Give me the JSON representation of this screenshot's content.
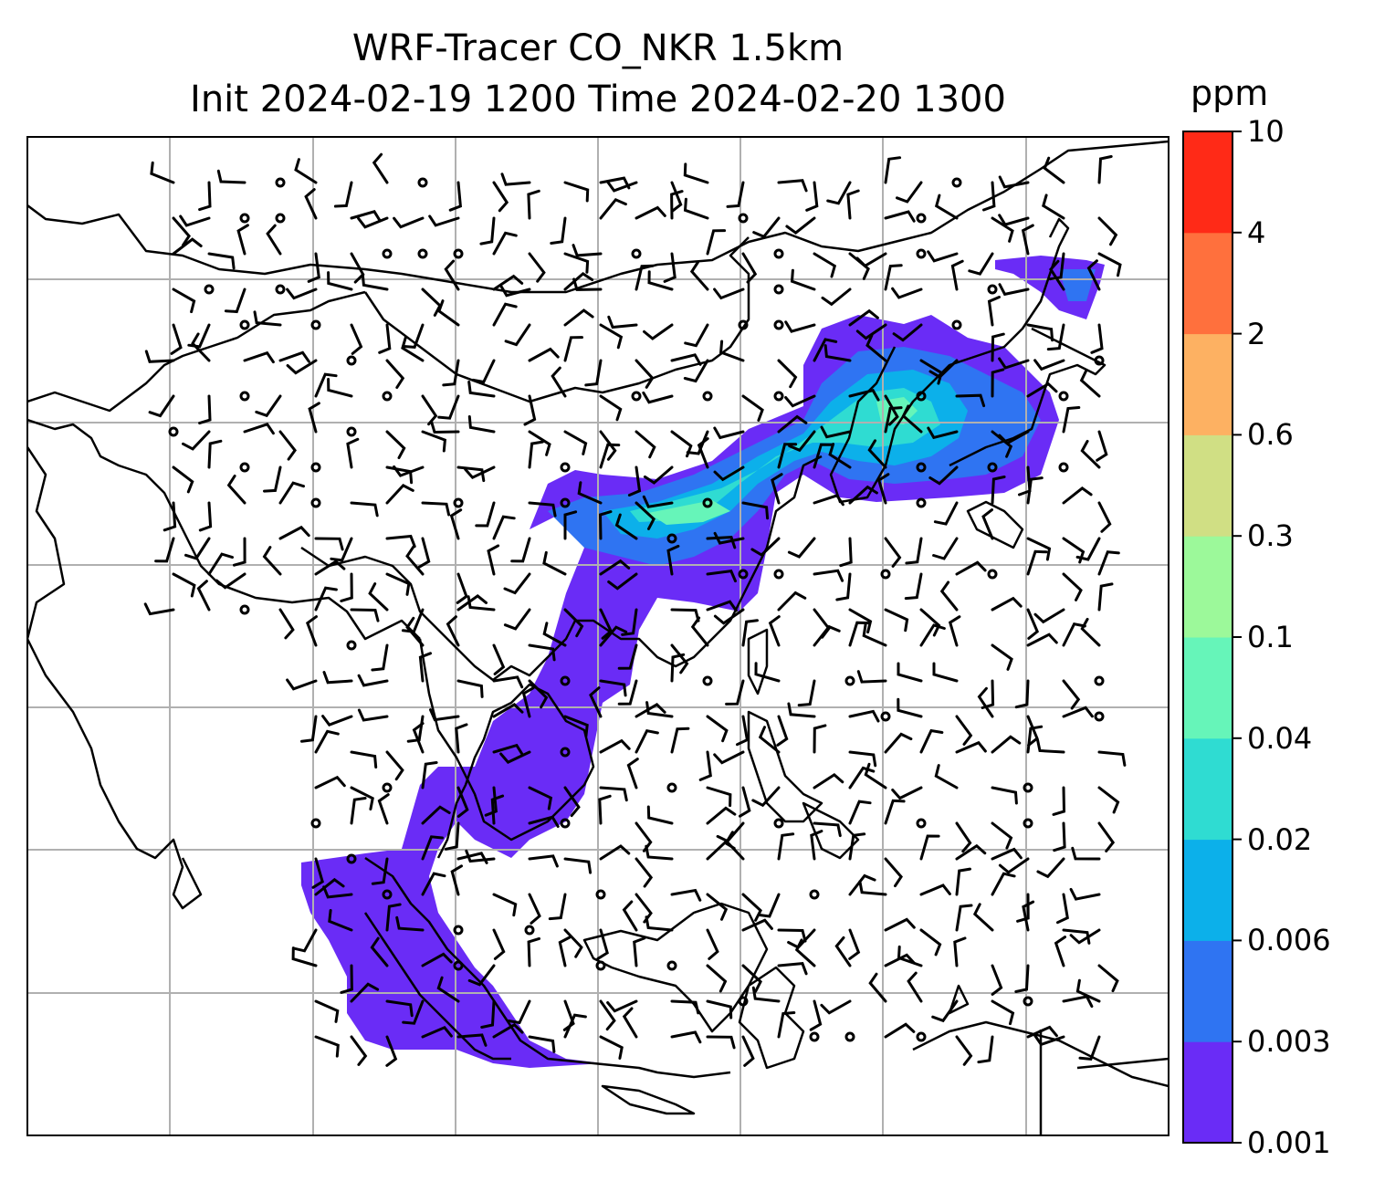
{
  "figure": {
    "title_line1": "WRF-Tracer CO_NKR 1.5km",
    "title_line2": "Init 2024-02-19 1200 Time 2024-02-20 1300"
  },
  "colorbar": {
    "unit": "ppm",
    "levels": [
      "0.001",
      "0.003",
      "0.006",
      "0.02",
      "0.04",
      "0.1",
      "0.3",
      "0.6",
      "2",
      "4",
      "10"
    ],
    "colors": [
      "#6a2cf6",
      "#2f74f2",
      "#0cb0ea",
      "#2fdcd2",
      "#66f5b9",
      "#9cf99a",
      "#d0df84",
      "#fdb162",
      "#ff703d",
      "#ff2a17"
    ]
  },
  "map": {
    "projection": "lat-lon grid, gridlines shown",
    "gridlines": true,
    "coastline_color": "#000000",
    "grid_color": "#b0b0b0",
    "wind_barb_color": "#000000"
  }
}
